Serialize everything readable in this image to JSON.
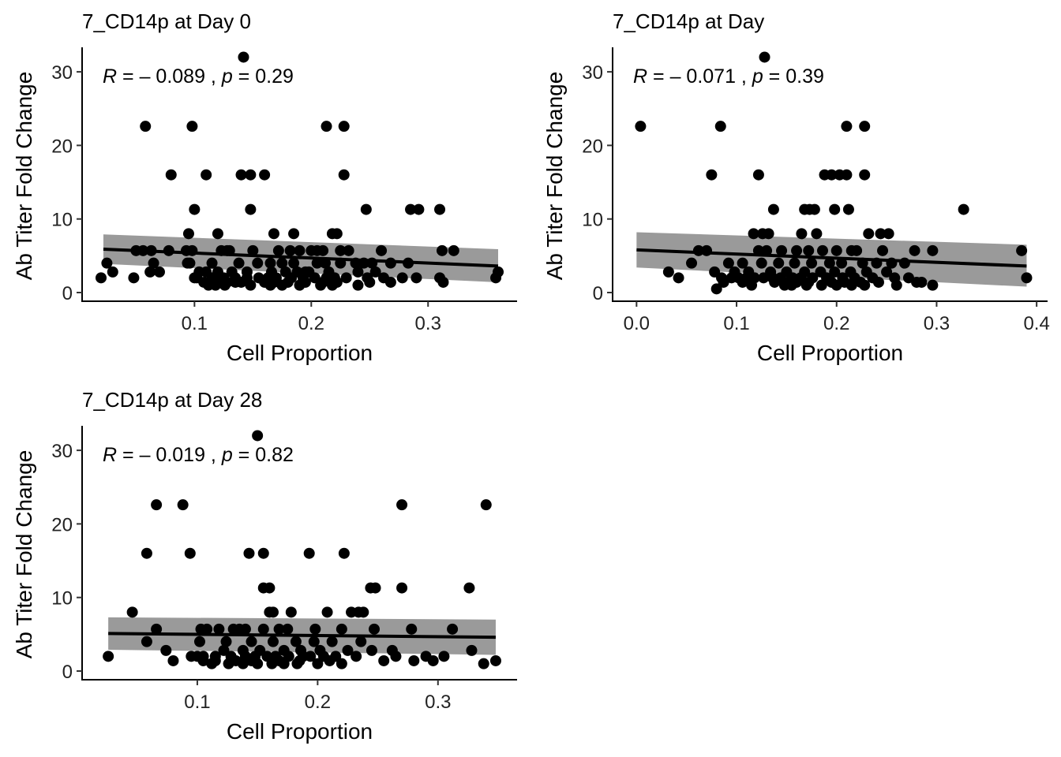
{
  "chart_data": [
    {
      "type": "scatter",
      "title": "7_CD14p at Day 0",
      "xlabel": "Cell Proportion",
      "ylabel": "Ab Titer Fold Change",
      "xlim": [
        0.02,
        0.36
      ],
      "ylim": [
        0,
        32
      ],
      "xticks": [
        "0.1",
        "0.2",
        "0.3"
      ],
      "xtick_values": [
        0.1,
        0.2,
        0.3
      ],
      "yticks": [
        "0",
        "10",
        "20",
        "30"
      ],
      "ytick_values": [
        0,
        10,
        20,
        30
      ],
      "stat_label": "R = – 0.089 , p = 0.29",
      "stat_r": "–0.089",
      "stat_p": "0.29",
      "fit": {
        "x": [
          0.022,
          0.36
        ],
        "y": [
          5.9,
          3.6
        ],
        "ci_upper": [
          7.9,
          5.9
        ],
        "ci_lower": [
          3.9,
          1.4
        ]
      },
      "points": {
        "x": [
          0.142,
          0.058,
          0.098,
          0.213,
          0.228,
          0.08,
          0.11,
          0.14,
          0.148,
          0.16,
          0.228,
          0.1,
          0.148,
          0.247,
          0.285,
          0.292,
          0.31,
          0.095,
          0.12,
          0.168,
          0.185,
          0.218,
          0.222,
          0.05,
          0.056,
          0.063,
          0.078,
          0.093,
          0.098,
          0.123,
          0.128,
          0.13,
          0.15,
          0.172,
          0.182,
          0.19,
          0.2,
          0.205,
          0.21,
          0.225,
          0.232,
          0.26,
          0.312,
          0.322,
          0.025,
          0.065,
          0.094,
          0.096,
          0.115,
          0.138,
          0.154,
          0.165,
          0.175,
          0.185,
          0.205,
          0.212,
          0.225,
          0.238,
          0.245,
          0.252,
          0.268,
          0.283,
          0.03,
          0.062,
          0.07,
          0.104,
          0.11,
          0.12,
          0.132,
          0.145,
          0.166,
          0.178,
          0.188,
          0.195,
          0.198,
          0.215,
          0.24,
          0.255,
          0.02,
          0.048,
          0.1,
          0.102,
          0.115,
          0.12,
          0.125,
          0.135,
          0.145,
          0.155,
          0.163,
          0.17,
          0.183,
          0.193,
          0.203,
          0.213,
          0.22,
          0.23,
          0.248,
          0.262,
          0.278,
          0.29,
          0.31,
          0.358,
          0.108,
          0.125,
          0.128,
          0.135,
          0.14,
          0.16,
          0.168,
          0.18,
          0.195,
          0.21,
          0.222,
          0.25,
          0.268,
          0.313,
          0.36,
          0.112,
          0.118,
          0.126,
          0.148,
          0.165,
          0.175,
          0.19,
          0.208,
          0.218,
          0.24
        ],
        "y": [
          32,
          22.6,
          22.6,
          22.6,
          22.6,
          16,
          16,
          16,
          16,
          16,
          16,
          11.3,
          11.3,
          11.3,
          11.3,
          11.3,
          11.3,
          8,
          8,
          8,
          8,
          8,
          8,
          5.7,
          5.7,
          5.7,
          5.7,
          5.7,
          5.7,
          5.7,
          5.7,
          5.7,
          5.7,
          5.7,
          5.7,
          5.7,
          5.7,
          5.7,
          5.7,
          5.7,
          5.7,
          5.7,
          5.7,
          5.7,
          4,
          4,
          4,
          4,
          4,
          4,
          4,
          4,
          4,
          4,
          4,
          4,
          4,
          4,
          4,
          4,
          4,
          4,
          2.8,
          2.8,
          2.8,
          2.8,
          2.8,
          2.8,
          2.8,
          2.8,
          2.8,
          2.8,
          2.8,
          2.8,
          2.8,
          2.8,
          2.8,
          2.8,
          2,
          2,
          2,
          2,
          2,
          2,
          2,
          2,
          2,
          2,
          2,
          2,
          2,
          2,
          2,
          2,
          2,
          2,
          2,
          2,
          2,
          2,
          2,
          2,
          1.4,
          1.4,
          1.4,
          1.4,
          1.4,
          1.4,
          1.4,
          1.4,
          1.4,
          1.4,
          1.4,
          1.4,
          1.4,
          1.4,
          2.8,
          1,
          1,
          1,
          1,
          1,
          1,
          1,
          1,
          1,
          1
        ]
      }
    },
    {
      "type": "scatter",
      "title": "7_CD14p at Day",
      "xlabel": "Cell Proportion",
      "ylabel": "Ab Titer Fold Change",
      "xlim": [
        -0.005,
        0.392
      ],
      "ylim": [
        0,
        32
      ],
      "xticks": [
        "0.0",
        "0.1",
        "0.2",
        "0.3",
        "0.4"
      ],
      "xtick_values": [
        0.0,
        0.1,
        0.2,
        0.3,
        0.4
      ],
      "yticks": [
        "0",
        "10",
        "20",
        "30"
      ],
      "ytick_values": [
        0,
        10,
        20,
        30
      ],
      "stat_label": "R = – 0.071 , p = 0.39",
      "stat_r": "–0.071",
      "stat_p": "0.39",
      "fit": {
        "x": [
          0.0,
          0.39
        ],
        "y": [
          5.8,
          3.6
        ],
        "ci_upper": [
          8.2,
          6.5
        ],
        "ci_lower": [
          3.4,
          0.8
        ]
      },
      "points": {
        "x": [
          0.128,
          0.004,
          0.084,
          0.21,
          0.228,
          0.075,
          0.122,
          0.188,
          0.195,
          0.203,
          0.21,
          0.228,
          0.137,
          0.168,
          0.173,
          0.178,
          0.198,
          0.212,
          0.327,
          0.117,
          0.126,
          0.132,
          0.165,
          0.18,
          0.232,
          0.244,
          0.252,
          0.062,
          0.07,
          0.122,
          0.13,
          0.145,
          0.16,
          0.172,
          0.186,
          0.2,
          0.215,
          0.22,
          0.246,
          0.278,
          0.296,
          0.385,
          0.055,
          0.092,
          0.106,
          0.125,
          0.142,
          0.158,
          0.175,
          0.193,
          0.205,
          0.226,
          0.24,
          0.255,
          0.268,
          0.032,
          0.078,
          0.098,
          0.112,
          0.134,
          0.15,
          0.168,
          0.184,
          0.198,
          0.214,
          0.23,
          0.25,
          0.042,
          0.085,
          0.095,
          0.102,
          0.11,
          0.118,
          0.127,
          0.136,
          0.144,
          0.156,
          0.164,
          0.176,
          0.19,
          0.206,
          0.218,
          0.236,
          0.258,
          0.272,
          0.39,
          0.087,
          0.106,
          0.138,
          0.152,
          0.16,
          0.172,
          0.195,
          0.208,
          0.224,
          0.242,
          0.28,
          0.285,
          0.08,
          0.115,
          0.148,
          0.155,
          0.17,
          0.185,
          0.2,
          0.215,
          0.228,
          0.26,
          0.296
        ],
        "y": [
          32,
          22.6,
          22.6,
          22.6,
          22.6,
          16,
          16,
          16,
          16,
          16,
          16,
          16,
          11.3,
          11.3,
          11.3,
          11.3,
          11.3,
          11.3,
          11.3,
          8,
          8,
          8,
          8,
          8,
          8,
          8,
          8,
          5.7,
          5.7,
          5.7,
          5.7,
          5.7,
          5.7,
          5.7,
          5.7,
          5.7,
          5.7,
          5.7,
          5.7,
          5.7,
          5.7,
          5.7,
          4,
          4,
          4,
          4,
          4,
          4,
          4,
          4,
          4,
          4,
          4,
          4,
          4,
          2.8,
          2.8,
          2.8,
          2.8,
          2.8,
          2.8,
          2.8,
          2.8,
          2.8,
          2.8,
          2.8,
          2.8,
          2,
          2,
          2,
          2,
          2,
          2,
          2,
          2,
          2,
          2,
          2,
          2,
          2,
          2,
          2,
          2,
          2,
          2,
          2,
          1.4,
          1.4,
          1.4,
          1.4,
          1.4,
          1.4,
          1.4,
          1.4,
          1.4,
          1.4,
          1.4,
          1.4,
          0.5,
          1,
          1,
          1,
          1,
          1,
          1,
          1,
          1,
          1,
          1
        ]
      }
    },
    {
      "type": "scatter",
      "title": "7_CD14p at Day 28",
      "xlabel": "Cell Proportion",
      "ylabel": "Ab Titer Fold Change",
      "xlim": [
        0.02,
        0.35
      ],
      "ylim": [
        0,
        32
      ],
      "xticks": [
        "0.1",
        "0.2",
        "0.3"
      ],
      "xtick_values": [
        0.1,
        0.2,
        0.3
      ],
      "yticks": [
        "0",
        "10",
        "20",
        "30"
      ],
      "ytick_values": [
        0,
        10,
        20,
        30
      ],
      "stat_label": "R = – 0.019 , p = 0.82",
      "stat_r": "–0.019",
      "stat_p": "0.82",
      "fit": {
        "x": [
          0.026,
          0.348
        ],
        "y": [
          5.1,
          4.6
        ],
        "ci_upper": [
          7.3,
          7.0
        ],
        "ci_lower": [
          2.9,
          2.2
        ]
      },
      "points": {
        "x": [
          0.15,
          0.066,
          0.088,
          0.27,
          0.34,
          0.058,
          0.094,
          0.143,
          0.155,
          0.193,
          0.222,
          0.155,
          0.16,
          0.244,
          0.248,
          0.27,
          0.326,
          0.046,
          0.16,
          0.163,
          0.178,
          0.208,
          0.228,
          0.234,
          0.238,
          0.066,
          0.103,
          0.108,
          0.118,
          0.13,
          0.135,
          0.14,
          0.155,
          0.168,
          0.175,
          0.198,
          0.22,
          0.247,
          0.278,
          0.312,
          0.058,
          0.102,
          0.124,
          0.145,
          0.163,
          0.182,
          0.197,
          0.212,
          0.236,
          0.074,
          0.122,
          0.138,
          0.152,
          0.172,
          0.186,
          0.202,
          0.225,
          0.245,
          0.262,
          0.328,
          0.026,
          0.095,
          0.1,
          0.105,
          0.115,
          0.128,
          0.14,
          0.148,
          0.158,
          0.165,
          0.176,
          0.188,
          0.194,
          0.205,
          0.215,
          0.232,
          0.265,
          0.29,
          0.305,
          0.08,
          0.105,
          0.115,
          0.132,
          0.145,
          0.168,
          0.185,
          0.21,
          0.255,
          0.28,
          0.296,
          0.112,
          0.126,
          0.138,
          0.15,
          0.162,
          0.172,
          0.183,
          0.2,
          0.22,
          0.338,
          0.348
        ],
        "y": [
          32,
          22.6,
          22.6,
          22.6,
          22.6,
          16,
          16,
          16,
          16,
          16,
          16,
          11.3,
          11.3,
          11.3,
          11.3,
          11.3,
          11.3,
          8,
          8,
          8,
          8,
          8,
          8,
          8,
          8,
          5.7,
          5.7,
          5.7,
          5.7,
          5.7,
          5.7,
          5.7,
          5.7,
          5.7,
          5.7,
          5.7,
          5.7,
          5.7,
          5.7,
          5.7,
          4,
          4,
          4,
          4,
          4,
          4,
          4,
          4,
          4,
          2.8,
          2.8,
          2.8,
          2.8,
          2.8,
          2.8,
          2.8,
          2.8,
          2.8,
          2.8,
          2.8,
          2,
          2,
          2,
          2,
          2,
          2,
          2,
          2,
          2,
          2,
          2,
          2,
          2,
          2,
          2,
          2,
          2,
          2,
          2,
          1.4,
          1.4,
          1.4,
          1.4,
          1.4,
          1.4,
          1.4,
          1.4,
          1.4,
          1.4,
          1.4,
          1,
          1,
          1,
          1,
          1,
          1,
          1,
          1,
          1,
          1,
          1.4
        ]
      }
    }
  ]
}
